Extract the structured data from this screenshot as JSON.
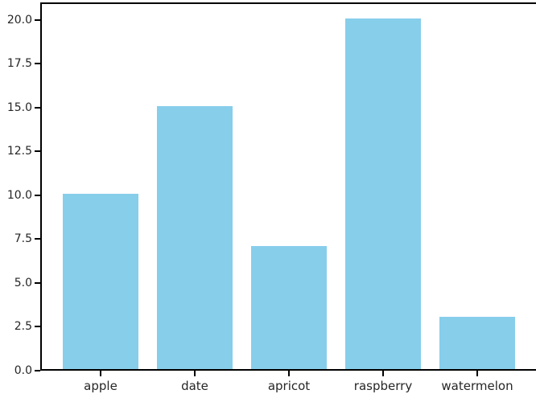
{
  "chart_data": {
    "type": "bar",
    "title": "",
    "xlabel": "",
    "ylabel": "",
    "categories": [
      "apple",
      "date",
      "apricot",
      "raspberry",
      "watermelon"
    ],
    "values": [
      10,
      15,
      7,
      20,
      3
    ],
    "yticks": [
      0.0,
      2.5,
      5.0,
      7.5,
      10.0,
      12.5,
      15.0,
      17.5,
      20.0
    ],
    "ytick_labels": [
      "0.0",
      "2.5",
      "5.0",
      "7.5",
      "10.0",
      "12.5",
      "15.0",
      "17.5",
      "20.0"
    ],
    "ylim": [
      0,
      21
    ],
    "bar_color": "#87CEEB",
    "spine_color": "#000000",
    "tick_label_color": "#262626",
    "grid": false,
    "legend": null
  }
}
